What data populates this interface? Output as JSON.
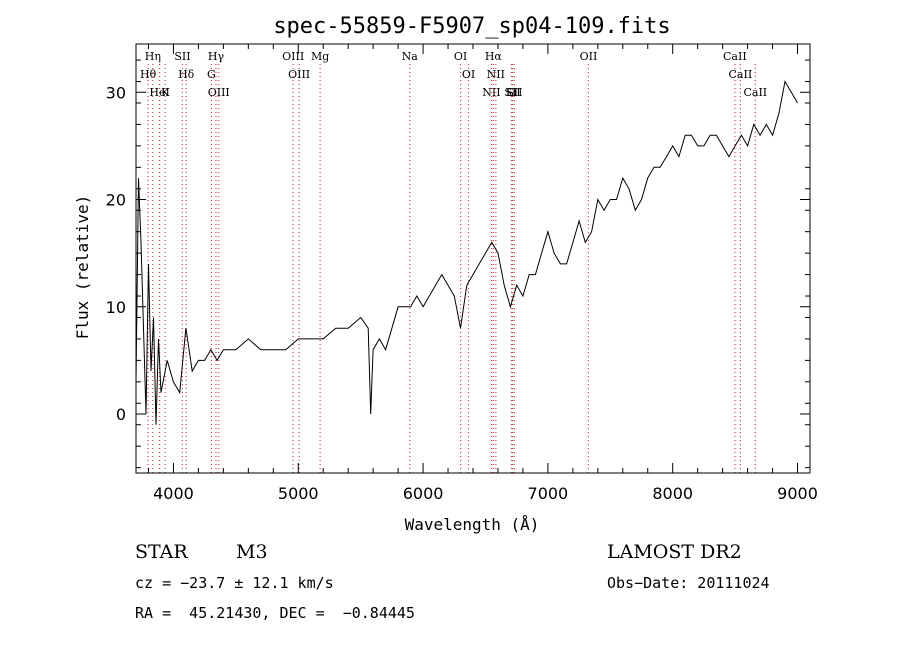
{
  "chart_data": {
    "type": "line",
    "title": "spec-55859-F5907_sp04-109.fits",
    "xlabel": "Wavelength (Å)",
    "ylabel": "Flux (relative)",
    "xlim": [
      3700,
      9100
    ],
    "ylim": [
      -5.5,
      34.5
    ],
    "x_ticks": [
      4000,
      5000,
      6000,
      7000,
      8000,
      9000
    ],
    "y_ticks": [
      0,
      10,
      20,
      30
    ],
    "grid": false,
    "series": [
      {
        "x": [
          3700,
          3720,
          3740,
          3760,
          3780,
          3800,
          3820,
          3840,
          3860,
          3880,
          3900,
          3950,
          4000,
          4050,
          4100,
          4150,
          4200,
          4250,
          4300,
          4350,
          4400,
          4450,
          4500,
          4600,
          4700,
          4800,
          4900,
          5000,
          5100,
          5200,
          5300,
          5400,
          5500,
          5560,
          5580,
          5600,
          5650,
          5700,
          5750,
          5800,
          5850,
          5900,
          5950,
          6000,
          6050,
          6100,
          6150,
          6200,
          6250,
          6300,
          6350,
          6400,
          6450,
          6500,
          6550,
          6600,
          6650,
          6700,
          6750,
          6800,
          6850,
          6900,
          6950,
          7000,
          7050,
          7100,
          7150,
          7200,
          7250,
          7300,
          7350,
          7400,
          7450,
          7500,
          7550,
          7600,
          7650,
          7700,
          7750,
          7800,
          7850,
          7900,
          7950,
          8000,
          8050,
          8100,
          8150,
          8200,
          8250,
          8300,
          8350,
          8400,
          8450,
          8500,
          8550,
          8600,
          8650,
          8700,
          8750,
          8800,
          8850,
          8900,
          8950,
          9000
        ],
        "y": [
          3,
          22,
          16,
          8,
          0,
          14,
          4,
          9,
          -1,
          7,
          2,
          5,
          3,
          2,
          8,
          4,
          5,
          5,
          6,
          5,
          6,
          6,
          6,
          7,
          6,
          6,
          6,
          7,
          7,
          7,
          8,
          8,
          9,
          8,
          0,
          6,
          7,
          6,
          8,
          10,
          10,
          10,
          11,
          10,
          11,
          12,
          13,
          12,
          11,
          8,
          12,
          13,
          14,
          15,
          16,
          15,
          12,
          10,
          12,
          11,
          13,
          13,
          15,
          17,
          15,
          14,
          14,
          16,
          18,
          16,
          17,
          20,
          19,
          20,
          20,
          22,
          21,
          19,
          20,
          22,
          23,
          23,
          24,
          25,
          24,
          26,
          26,
          25,
          25,
          26,
          26,
          25,
          24,
          25,
          26,
          25,
          27,
          26,
          27,
          26,
          28,
          31,
          30,
          29
        ]
      }
    ],
    "spectral_lines": [
      {
        "label": "Hη",
        "wavelength": 3835
      },
      {
        "label": "Hθ",
        "wavelength": 3797
      },
      {
        "label": "HeI",
        "wavelength": 3889
      },
      {
        "label": "K",
        "wavelength": 3934
      },
      {
        "label": "SII",
        "wavelength": 4072
      },
      {
        "label": "Hδ",
        "wavelength": 4102
      },
      {
        "label": "Hγ",
        "wavelength": 4341
      },
      {
        "label": "G",
        "wavelength": 4304
      },
      {
        "label": "OIII",
        "wavelength": 4363
      },
      {
        "label": "OIII",
        "wavelength": 4959
      },
      {
        "label": "OIII",
        "wavelength": 5007
      },
      {
        "label": "Mg",
        "wavelength": 5175
      },
      {
        "label": "Na",
        "wavelength": 5893
      },
      {
        "label": "OI",
        "wavelength": 6300
      },
      {
        "label": "OI",
        "wavelength": 6364
      },
      {
        "label": "Hα",
        "wavelength": 6563
      },
      {
        "label": "NII",
        "wavelength": 6583
      },
      {
        "label": "SII",
        "wavelength": 6716
      },
      {
        "label": "Li",
        "wavelength": 6708
      },
      {
        "label": "SII",
        "wavelength": 6731
      },
      {
        "label": "NII",
        "wavelength": 6548
      },
      {
        "label": "OII",
        "wavelength": 7325
      },
      {
        "label": "CaII",
        "wavelength": 8498
      },
      {
        "label": "CaII",
        "wavelength": 8542
      },
      {
        "label": "CaII",
        "wavelength": 8662
      }
    ]
  },
  "info": {
    "object_class": "STAR",
    "subclass": "M3",
    "survey": "LAMOST DR2",
    "cz": "cz = −23.7 ± 12.1 km/s",
    "obs_date": "Obs−Date: 20111024",
    "coords": "RA =  45.21430, DEC =  −0.84445"
  }
}
